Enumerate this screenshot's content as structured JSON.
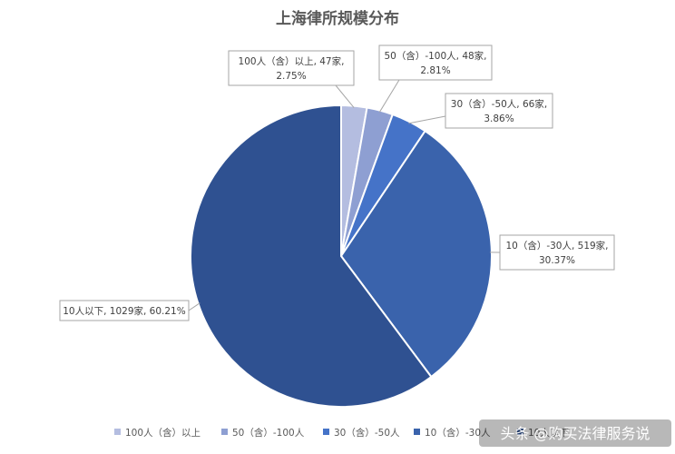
{
  "chart_data": {
    "type": "pie",
    "title": "上海律所规模分布",
    "slices": [
      {
        "name": "100人（含）以上",
        "count": 47,
        "percent": 2.75,
        "count_text": "47家",
        "percent_text": "2.75%",
        "color": "#b4bde0"
      },
      {
        "name": "50（含）-100人",
        "count": 48,
        "percent": 2.81,
        "count_text": "48家",
        "percent_text": "2.81%",
        "color": "#8e9fd2"
      },
      {
        "name": "30（含）-50人",
        "count": 66,
        "percent": 3.86,
        "count_text": "66家",
        "percent_text": "3.86%",
        "color": "#4573c8"
      },
      {
        "name": "10（含）-30人",
        "count": 519,
        "percent": 30.37,
        "count_text": "519家",
        "percent_text": "30.37%",
        "color": "#3a63ac"
      },
      {
        "name": "10人以下",
        "count": 1029,
        "percent": 60.21,
        "count_text": "1029家",
        "percent_text": "60.21%",
        "color": "#2f5191"
      }
    ],
    "legend": {
      "position": "bottom",
      "entries": [
        "100人（含）以上",
        "50（含）-100人",
        "30（含）-50人",
        "10（含）-30人",
        "10人以下"
      ]
    }
  },
  "watermark": "头条 @购买法律服务说"
}
